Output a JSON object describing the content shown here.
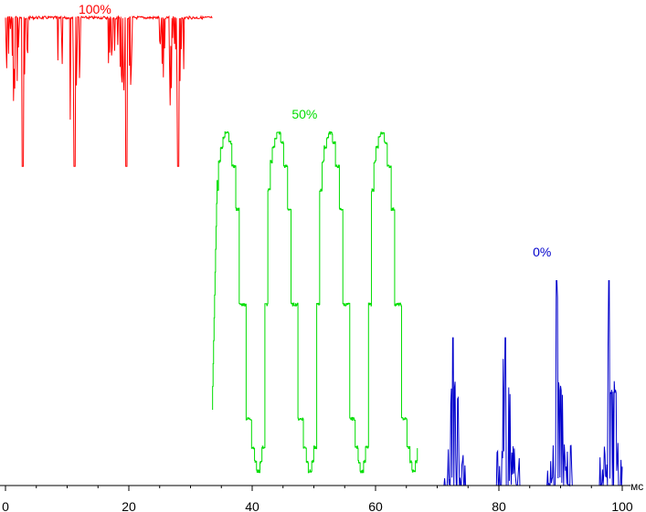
{
  "chart_data": {
    "type": "line",
    "x_unit": "мс",
    "xlim": [
      0,
      100
    ],
    "ylim": [
      0,
      1
    ],
    "x_ticks": [
      "0",
      "20",
      "40",
      "60",
      "80",
      "100"
    ],
    "grid": false,
    "series": [
      {
        "name": "100%",
        "color": "#ff0000",
        "x_start": 0,
        "x_end": 33.5,
        "period_ms": 8.4,
        "baseline": 0.985,
        "spike_times": [
          2.8,
          11.2,
          19.6,
          28.0
        ],
        "spike_min": 0.67
      },
      {
        "name": "50%",
        "color": "#00dd00",
        "x_start": 33.5,
        "x_end": 66.8,
        "period_ms": 8.4,
        "high": 0.74,
        "low": 0.03,
        "first_high_at": 34.8
      },
      {
        "name": "0%",
        "color": "#0000cc",
        "x_start": 66.8,
        "x_end": 100,
        "period_ms": 8.4,
        "baseline": 0.0,
        "pulse_times": [
          72.5,
          81.0,
          89.3,
          97.8
        ],
        "pulse_peaks": [
          0.31,
          0.31,
          0.43,
          0.43
        ]
      }
    ]
  }
}
